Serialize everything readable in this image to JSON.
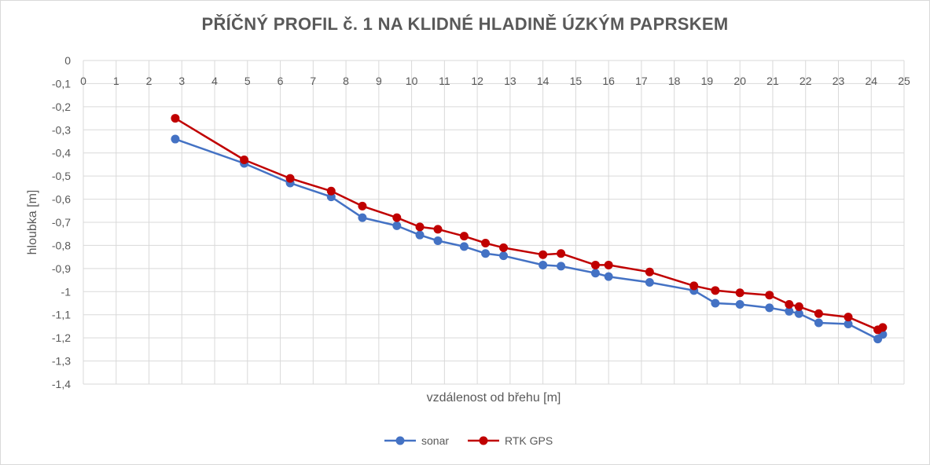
{
  "chart_data": {
    "type": "line",
    "title": "PŘÍČNÝ PROFIL č. 1 NA KLIDNÉ HLADINĚ ÚZKÝM PAPRSKEM",
    "xlabel": "vzdálenost od břehu [m]",
    "ylabel": "hloubka [m]",
    "xlim": [
      0,
      25
    ],
    "ylim": [
      -1.4,
      0
    ],
    "x_ticks": [
      0,
      1,
      2,
      3,
      4,
      5,
      6,
      7,
      8,
      9,
      10,
      11,
      12,
      13,
      14,
      15,
      16,
      17,
      18,
      19,
      20,
      21,
      22,
      23,
      24,
      25
    ],
    "y_ticks": [
      0,
      -0.1,
      -0.2,
      -0.3,
      -0.4,
      -0.5,
      -0.6,
      -0.7,
      -0.8,
      -0.9,
      -1,
      -1.1,
      -1.2,
      -1.3,
      -1.4
    ],
    "y_tick_labels": [
      "0",
      "-0,1",
      "-0,2",
      "-0,3",
      "-0,4",
      "-0,5",
      "-0,6",
      "-0,7",
      "-0,8",
      "-0,9",
      "-1",
      "-1,1",
      "-1,2",
      "-1,3",
      "-1,4"
    ],
    "grid": true,
    "legend_position": "bottom",
    "series": [
      {
        "name": "sonar",
        "color": "#4472c4",
        "points": [
          [
            2.8,
            -0.34
          ],
          [
            4.9,
            -0.445
          ],
          [
            6.3,
            -0.53
          ],
          [
            7.55,
            -0.59
          ],
          [
            8.5,
            -0.68
          ],
          [
            9.55,
            -0.715
          ],
          [
            10.25,
            -0.755
          ],
          [
            10.8,
            -0.78
          ],
          [
            11.6,
            -0.805
          ],
          [
            12.25,
            -0.835
          ],
          [
            12.8,
            -0.845
          ],
          [
            14.0,
            -0.885
          ],
          [
            14.55,
            -0.89
          ],
          [
            15.6,
            -0.92
          ],
          [
            16.0,
            -0.935
          ],
          [
            17.25,
            -0.96
          ],
          [
            18.6,
            -0.995
          ],
          [
            19.25,
            -1.05
          ],
          [
            20.0,
            -1.055
          ],
          [
            20.9,
            -1.07
          ],
          [
            21.5,
            -1.085
          ],
          [
            21.8,
            -1.095
          ],
          [
            22.4,
            -1.135
          ],
          [
            23.3,
            -1.14
          ],
          [
            24.2,
            -1.205
          ],
          [
            24.35,
            -1.185
          ]
        ]
      },
      {
        "name": "RTK GPS",
        "color": "#c00000",
        "points": [
          [
            2.8,
            -0.25
          ],
          [
            4.9,
            -0.43
          ],
          [
            6.3,
            -0.51
          ],
          [
            7.55,
            -0.565
          ],
          [
            8.5,
            -0.63
          ],
          [
            9.55,
            -0.68
          ],
          [
            10.25,
            -0.72
          ],
          [
            10.8,
            -0.73
          ],
          [
            11.6,
            -0.76
          ],
          [
            12.25,
            -0.79
          ],
          [
            12.8,
            -0.81
          ],
          [
            14.0,
            -0.84
          ],
          [
            14.55,
            -0.835
          ],
          [
            15.6,
            -0.885
          ],
          [
            16.0,
            -0.885
          ],
          [
            17.25,
            -0.915
          ],
          [
            18.6,
            -0.975
          ],
          [
            19.25,
            -0.995
          ],
          [
            20.0,
            -1.005
          ],
          [
            20.9,
            -1.015
          ],
          [
            21.5,
            -1.055
          ],
          [
            21.8,
            -1.065
          ],
          [
            22.4,
            -1.095
          ],
          [
            23.3,
            -1.11
          ],
          [
            24.2,
            -1.165
          ],
          [
            24.35,
            -1.155
          ]
        ]
      }
    ]
  }
}
